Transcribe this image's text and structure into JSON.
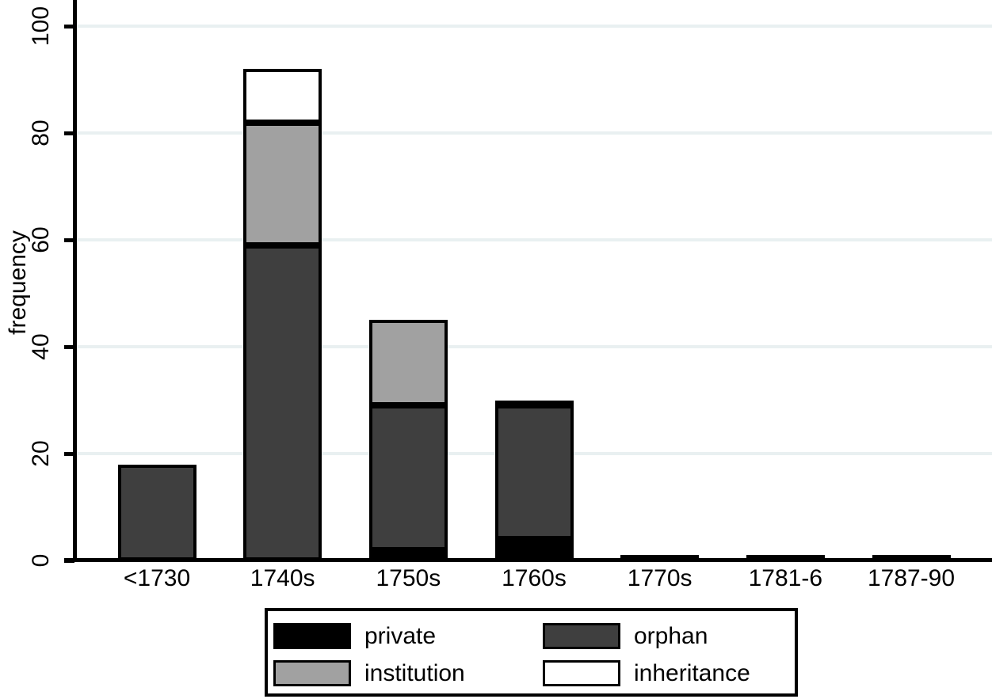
{
  "chart_data": {
    "type": "bar",
    "stacked": true,
    "title": "",
    "xlabel": "",
    "ylabel": "frequency",
    "ylim": [
      0,
      100
    ],
    "yticks": [
      0,
      20,
      40,
      60,
      80,
      100
    ],
    "grid": true,
    "categories": [
      "<1730",
      "1740s",
      "1750s",
      "1760s",
      "1770s",
      "1781-6",
      "1787-90"
    ],
    "series": [
      {
        "name": "private",
        "color": "#000000",
        "values": [
          0,
          0,
          2,
          4,
          1,
          1,
          1
        ]
      },
      {
        "name": "orphan",
        "color": "#3f3f3f",
        "values": [
          18,
          59,
          27,
          25,
          0,
          0,
          0
        ]
      },
      {
        "name": "institution",
        "color": "#a1a1a1",
        "values": [
          0,
          23,
          16,
          1,
          0,
          0,
          0
        ]
      },
      {
        "name": "inheritance",
        "color": "#ffffff",
        "values": [
          0,
          10,
          0,
          0,
          0,
          0,
          0
        ]
      }
    ],
    "legend": {
      "position": "bottom",
      "columns": 2,
      "entries": [
        {
          "label": "private",
          "color": "#000000"
        },
        {
          "label": "orphan",
          "color": "#3f3f3f"
        },
        {
          "label": "institution",
          "color": "#a1a1a1"
        },
        {
          "label": "inheritance",
          "color": "#ffffff"
        }
      ]
    }
  },
  "colors": {
    "background": "#ffffff",
    "gridline": "#e9f0f1",
    "axis": "#000000",
    "text": "#000000",
    "bar_outline": "#000000"
  }
}
